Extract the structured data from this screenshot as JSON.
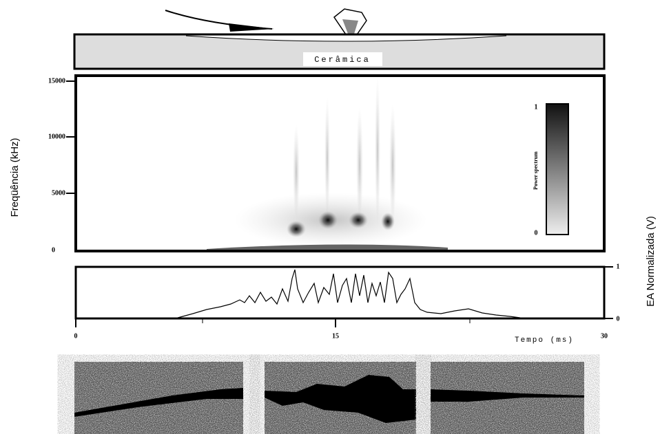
{
  "figure": {
    "material_label": "Cerâmica",
    "spectrogram": {
      "y_axis_label": "Freqüência (kHz)",
      "yticks": [
        "15000",
        "10000",
        "5000",
        "0"
      ],
      "colorbar": {
        "label": "Power spectrum",
        "top": "1",
        "bottom": "0"
      }
    },
    "waveform": {
      "y_axis_label": "EA Normalizada (V)",
      "yticks": [
        "1",
        "0"
      ]
    },
    "time_axis": {
      "label": "Tempo (ms)",
      "ticks": [
        "0",
        "15",
        "30"
      ]
    }
  }
}
